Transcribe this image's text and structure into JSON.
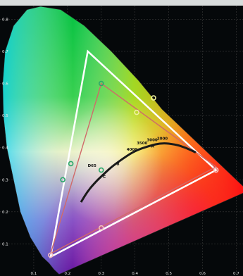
{
  "chart_data": {
    "type": "scatter",
    "title": "",
    "xlabel": "",
    "ylabel": "",
    "xlim": [
      0.0,
      0.72
    ],
    "ylim": [
      0.0,
      0.86
    ],
    "grid": true,
    "x_ticks": [
      "0.1",
      "0.2",
      "0.3",
      "0.4",
      "0.5",
      "0.6",
      "0.7"
    ],
    "x_tick_values": [
      0.1,
      0.2,
      0.3,
      0.4,
      0.5,
      0.6,
      0.7
    ],
    "y_ticks": [
      "0.1",
      "0.2",
      "0.3",
      "0.4",
      "0.5",
      "0.6",
      "0.7",
      "0.8"
    ],
    "y_tick_values": [
      0.1,
      0.2,
      0.3,
      0.4,
      0.5,
      0.6,
      0.7,
      0.8
    ],
    "spectral_locus": [
      [
        0.175,
        0.005
      ],
      [
        0.17,
        0.01
      ],
      [
        0.16,
        0.02
      ],
      [
        0.145,
        0.04
      ],
      [
        0.125,
        0.06
      ],
      [
        0.09,
        0.12
      ],
      [
        0.06,
        0.2
      ],
      [
        0.04,
        0.3
      ],
      [
        0.02,
        0.4
      ],
      [
        0.01,
        0.5
      ],
      [
        0.008,
        0.6
      ],
      [
        0.015,
        0.7
      ],
      [
        0.04,
        0.78
      ],
      [
        0.08,
        0.83
      ],
      [
        0.12,
        0.84
      ],
      [
        0.18,
        0.83
      ],
      [
        0.25,
        0.78
      ],
      [
        0.33,
        0.7
      ],
      [
        0.41,
        0.61
      ],
      [
        0.48,
        0.52
      ],
      [
        0.56,
        0.44
      ],
      [
        0.64,
        0.36
      ],
      [
        0.735,
        0.265
      ]
    ],
    "series": [
      {
        "points": [
          [
            0.64,
            0.33
          ],
          [
            0.26,
            0.7
          ],
          [
            0.15,
            0.06
          ]
        ],
        "color": "#ffffff"
      },
      {
        "points": [
          [
            0.64,
            0.34
          ],
          [
            0.3,
            0.6
          ],
          [
            0.15,
            0.07
          ]
        ],
        "color": "#d06a6a"
      }
    ],
    "markers": [
      {
        "label": "",
        "x": 0.3,
        "y": 0.6,
        "color": "#2ba86a"
      },
      {
        "label": "",
        "x": 0.21,
        "y": 0.35,
        "color": "#2ba86a"
      },
      {
        "label": "",
        "x": 0.186,
        "y": 0.3,
        "color": "#2ba86a"
      },
      {
        "label": "",
        "x": 0.3,
        "y": 0.33,
        "color": "#2ba86a"
      },
      {
        "label": "",
        "x": 0.64,
        "y": 0.33,
        "color": "#f4c0c0"
      },
      {
        "label": "",
        "x": 0.3,
        "y": 0.15,
        "color": "#f4c0c0"
      },
      {
        "label": "",
        "x": 0.15,
        "y": 0.065,
        "color": "#f4c0c0"
      },
      {
        "label": "",
        "x": 0.405,
        "y": 0.51,
        "color": "#f0f0a0"
      },
      {
        "label": "",
        "x": 0.455,
        "y": 0.555,
        "color": "#f0f0a0"
      }
    ],
    "planckian_locus": [
      [
        0.24,
        0.23
      ],
      [
        0.26,
        0.265
      ],
      [
        0.285,
        0.295
      ],
      [
        0.3,
        0.31
      ],
      [
        0.33,
        0.34
      ],
      [
        0.37,
        0.37
      ],
      [
        0.4,
        0.39
      ],
      [
        0.44,
        0.405
      ],
      [
        0.48,
        0.415
      ],
      [
        0.52,
        0.41
      ],
      [
        0.55,
        0.4
      ],
      [
        0.58,
        0.385
      ]
    ],
    "annotations": [
      {
        "text": "D65",
        "x": 0.26,
        "y": 0.34
      },
      {
        "text": "C",
        "x": 0.305,
        "y": 0.305
      },
      {
        "text": "B",
        "x": 0.345,
        "y": 0.345
      },
      {
        "text": "A",
        "x": 0.448,
        "y": 0.4
      },
      {
        "text": "4000",
        "x": 0.375,
        "y": 0.39
      },
      {
        "text": "3500",
        "x": 0.405,
        "y": 0.41
      },
      {
        "text": "3000",
        "x": 0.435,
        "y": 0.42
      },
      {
        "text": "2000",
        "x": 0.465,
        "y": 0.425
      }
    ]
  }
}
